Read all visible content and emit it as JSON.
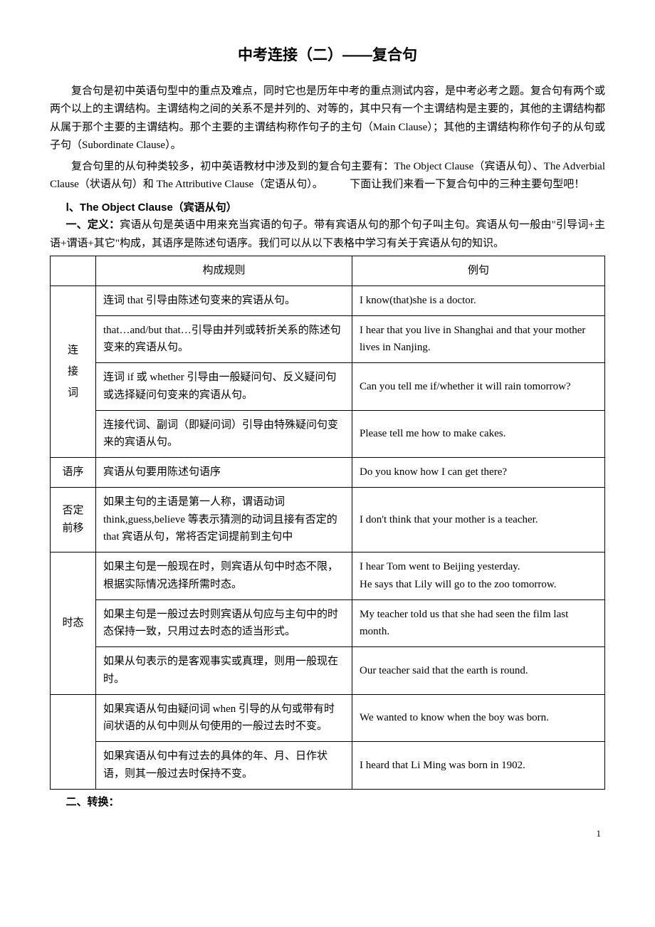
{
  "title": "中考连接（二）——复合句",
  "paras": [
    "复合句是初中英语句型中的重点及难点，同时它也是历年中考的重点测试内容，是中考必考之题。复合句有两个或两个以上的主谓结构。主谓结构之间的关系不是并列的、对等的，其中只有一个主谓结构是主要的，其他的主谓结构都从属于那个主要的主谓结构。那个主要的主谓结构称作句子的主句（Main Clause）；其他的主谓结构称作句子的从句或子句（Subordinate Clause）。",
    "复合句里的从句种类较多，初中英语教材中涉及到的复合句主要有：The Object Clause（宾语从句）、The Adverbial Clause（状语从句）和 The Attributive Clause（定语从句）。　　　下面让我们来看一下复合句中的三种主要句型吧！"
  ],
  "section1_label": "Ⅰ、The Object Clause（宾语从句）",
  "definition_label": "一、定义：",
  "definition_text": "宾语从句是英语中用来充当宾语的句子。带有宾语从句的那个句子叫主句。宾语从句一般由\"引导词+主语+谓语+其它\"构成，其语序是陈述句语序。我们可以从以下表格中学习有关于宾语从句的知识。",
  "headers": {
    "rule": "构成规则",
    "example": "例句"
  },
  "cats": {
    "conj1": "连",
    "conj2": "接",
    "conj3": "词",
    "order": "语序",
    "neg": "否定前移",
    "tense": "时态"
  },
  "rows": [
    {
      "rule": "连词 that 引导由陈述句变来的宾语从句。",
      "ex": "I know(that)she is a doctor."
    },
    {
      "rule": "that…and/but that…引导由并列或转折关系的陈述句变来的宾语从句。",
      "ex": "I hear that you live in Shanghai and that your mother lives in Nanjing."
    },
    {
      "rule": "连词 if 或 whether 引导由一般疑问句、反义疑问句或选择疑问句变来的宾语从句。",
      "ex": "Can you tell me if/whether it will rain tomorrow?"
    },
    {
      "rule": "连接代词、副词（即疑问词）引导由特殊疑问句变来的宾语从句。",
      "ex": "Please tell me how to make cakes."
    },
    {
      "rule": "宾语从句要用陈述句语序",
      "ex": "Do you know how I can get there?"
    },
    {
      "rule": "如果主句的主语是第一人称，谓语动词think,guess,believe 等表示猜测的动词且接有否定的 that 宾语从句，常将否定词提前到主句中",
      "ex": "I don't think that your mother is a teacher."
    },
    {
      "rule": "如果主句是一般现在时，则宾语从句中时态不限，根据实际情况选择所需时态。",
      "ex": "I hear Tom went to Beijing yesterday.\nHe says that Lily will go to the zoo tomorrow."
    },
    {
      "rule": "如果主句是一般过去时则宾语从句应与主句中的时态保持一致，只用过去时态的适当形式。",
      "ex": "My teacher told us that she had seen the film last month."
    },
    {
      "rule": "如果从句表示的是客观事实或真理，则用一般现在时。",
      "ex": "Our teacher said that the earth is round."
    },
    {
      "rule": "如果宾语从句由疑问词 when 引导的从句或带有时间状语的从句中则从句使用的一般过去时不变。",
      "ex": "We wanted to know when the boy was born."
    },
    {
      "rule": "如果宾语从句中有过去的具体的年、月、日作状语，则其一般过去时保持不变。",
      "ex": "I heard that Li Ming was born in 1902."
    }
  ],
  "footer_head": "二、转换：",
  "pagenum": "1"
}
